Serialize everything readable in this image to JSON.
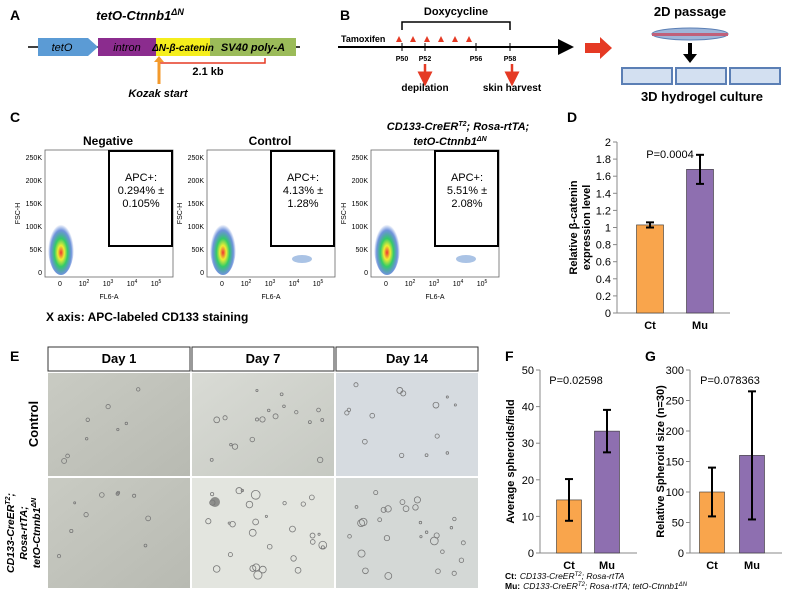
{
  "panel_a": {
    "label": "A",
    "title": "tetO-Ctnnb1",
    "title_sup": "ΔN",
    "segments": [
      "tetO",
      "intron",
      "ΔN-β-catenin",
      "SV40 poly-A"
    ],
    "size": "2.1 kb",
    "kozak": "Kozak start"
  },
  "panel_b": {
    "label": "B",
    "drug1": "Doxycycline",
    "drug2": "Tamoxifen",
    "timepoints": [
      "P50",
      "P52",
      "P56",
      "P58"
    ],
    "event1": "depilation",
    "event2": "skin harvest",
    "step1": "2D passage",
    "step2": "3D hydrogel culture"
  },
  "panel_c": {
    "label": "C",
    "titles": [
      "Negative",
      "Control"
    ],
    "title3": [
      "CD133-CreER",
      "T2",
      "; Rosa-rtTA;",
      "tetO-Ctnnb1",
      "ΔN"
    ],
    "gates": [
      [
        "APC+:",
        "0.294% ±",
        "0.105%"
      ],
      [
        "APC+:",
        "4.13% ±",
        "1.28%"
      ],
      [
        "APC+:",
        "5.51% ±",
        "2.08%"
      ]
    ],
    "ylabel": "FSC-H",
    "xlabel": "FL6-A",
    "yticks": [
      "250K",
      "200K",
      "150K",
      "100K",
      "50K",
      "0"
    ],
    "xticks": [
      [
        "0"
      ],
      [
        "10",
        "2"
      ],
      [
        "10",
        "3"
      ],
      [
        "10",
        "4"
      ],
      [
        "10",
        "5"
      ]
    ],
    "note": "X axis: APC-labeled CD133 staining"
  },
  "panel_e": {
    "label": "E",
    "days": [
      "Day 1",
      "Day 7",
      "Day 14"
    ],
    "row1": "Control",
    "row2": [
      "CD133-CreER",
      "T2",
      ";",
      "Rosa-rtTA;",
      "tetO-Ctnnb1",
      "ΔN"
    ]
  },
  "footnote": {
    "ct": [
      "Ct:",
      "CD133-CreER",
      "T2",
      "; Rosa-rtTA"
    ],
    "mu": [
      "Mu:",
      "CD133-CreER",
      "T2",
      "; Rosa-rtTA; tetO-Ctnnb1",
      "ΔN"
    ]
  },
  "chart_data": [
    {
      "type": "bar",
      "label": "D",
      "annotation": "P=0.0004",
      "ylabel": [
        "Relative β-catenin",
        "expression level"
      ],
      "categories": [
        "Ct",
        "Mu"
      ],
      "values": [
        1.03,
        1.68
      ],
      "errors": [
        0.03,
        0.17
      ],
      "colors": [
        "#f9a54c",
        "#8e6fb0"
      ],
      "ylim": [
        0,
        2
      ],
      "yticks": [
        0,
        0.2,
        0.4,
        0.6,
        0.8,
        1,
        1.2,
        1.4,
        1.6,
        1.8,
        2
      ]
    },
    {
      "type": "bar",
      "label": "F",
      "annotation": "P=0.02598",
      "ylabel": [
        "Average spheroids/field"
      ],
      "categories": [
        "Ct",
        "Mu"
      ],
      "values": [
        14.5,
        33.3
      ],
      "errors": [
        5.7,
        5.8
      ],
      "colors": [
        "#f9a54c",
        "#8e6fb0"
      ],
      "ylim": [
        0,
        50
      ],
      "yticks": [
        0,
        10,
        20,
        30,
        40,
        50
      ]
    },
    {
      "type": "bar",
      "label": "G",
      "annotation": "P=0.078363",
      "ylabel": [
        "Relative Spheroid size (n=30)"
      ],
      "categories": [
        "Ct",
        "Mu"
      ],
      "values": [
        100,
        160
      ],
      "errors": [
        40,
        105
      ],
      "colors": [
        "#f9a54c",
        "#8e6fb0"
      ],
      "ylim": [
        0,
        300
      ],
      "yticks": [
        0,
        50,
        100,
        150,
        200,
        250,
        300
      ]
    }
  ]
}
